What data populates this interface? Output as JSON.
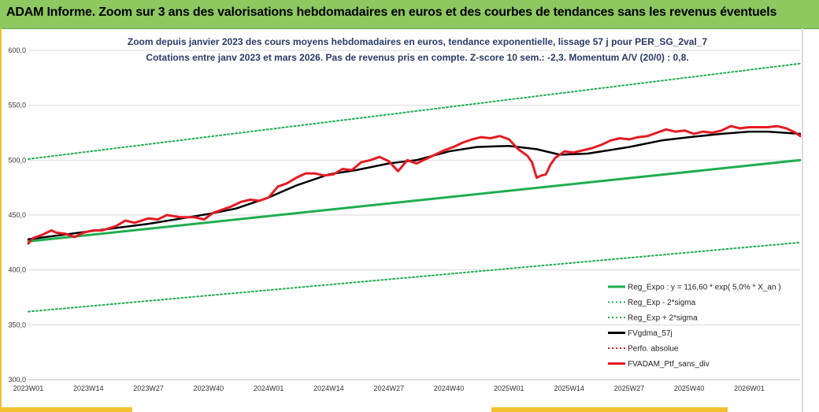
{
  "header": {
    "title": "ADAM Informe. Zoom sur 3 ans des valorisations hebdomadaires en euros et des courbes de tendances sans les revenus éventuels"
  },
  "chart_data": {
    "type": "line",
    "subtitle_line1": "Zoom depuis janvier 2023 des cours moyens hebdomadaires  en euros, tendance exponentielle, lissage 57 j pour PER_SG_2val_7",
    "subtitle_line2": "Cotations  entre janv 2023 et mars 2026. Pas de revenus pris en compte. Z-score 10 sem.: -2,3. Momentum A/V (20/0) : 0,8.",
    "ylim": [
      300,
      600
    ],
    "y_ticks": [
      "600,0",
      "550,0",
      "500,0",
      "450,0",
      "400,0",
      "350,0",
      "300,0"
    ],
    "x_ticks": [
      "2023W01",
      "2023W14",
      "2023W27",
      "2023W40",
      "2024W01",
      "2024W14",
      "2024W27",
      "2024W40",
      "2025W01",
      "2025W14",
      "2025W27",
      "2025W40",
      "2026W01"
    ],
    "xlim": [
      0,
      167
    ],
    "colors": {
      "reg": "#1fae4e",
      "band": "#1fae4e",
      "smooth": "#000000",
      "perf": "#e31b23",
      "ptf": "#e31b23"
    },
    "legend": [
      {
        "label": "Reg_Expo : y = 116,60 * exp( 5,0% *  X_an )",
        "style": "solid",
        "color": "#1fae4e"
      },
      {
        "label": "Reg_Exp - 2*sigma",
        "style": "dotted",
        "color": "#1fae4e"
      },
      {
        "label": "Reg_Exp + 2*sigma",
        "style": "dotted",
        "color": "#1fae4e"
      },
      {
        "label": "FVgdma_57j",
        "style": "solid",
        "color": "#000000"
      },
      {
        "label": "Perfo. absolue",
        "style": "dotted",
        "color": "#e31b23"
      },
      {
        "label": "FVADAM_Ptf_sans_div",
        "style": "solid",
        "color": "#e31b23"
      }
    ],
    "series": [
      {
        "name": "Reg_Expo : y = 116,60 * exp( 5,0% *  X_an )",
        "key": "reg",
        "x": [
          0,
          167
        ],
        "values": [
          426,
          500
        ]
      },
      {
        "name": "Reg_Exp - 2*sigma",
        "key": "lower",
        "x": [
          0,
          167
        ],
        "values": [
          362,
          425
        ]
      },
      {
        "name": "Reg_Exp + 2*sigma",
        "key": "upper",
        "x": [
          0,
          167
        ],
        "values": [
          501,
          588
        ]
      },
      {
        "name": "FVgdma_57j",
        "key": "smooth",
        "x": [
          0,
          13,
          26,
          39,
          45,
          52,
          58,
          65,
          71,
          78,
          84,
          91,
          97,
          104,
          110,
          115,
          121,
          130,
          137,
          143,
          150,
          156,
          160,
          167
        ],
        "values": [
          428,
          435,
          442,
          451,
          456,
          466,
          477,
          487,
          491,
          497,
          500,
          508,
          512,
          513,
          510,
          505,
          506,
          512,
          518,
          521,
          524,
          526,
          526,
          524
        ]
      },
      {
        "name": "FVADAM_Ptf_sans_div",
        "key": "ptf",
        "x": [
          0,
          1,
          3,
          5,
          6,
          8,
          10,
          12,
          14,
          16,
          19,
          21,
          23,
          26,
          28,
          30,
          33,
          36,
          38,
          40,
          42,
          44,
          46,
          48,
          50,
          52,
          54,
          56,
          58,
          60,
          62,
          64,
          66,
          68,
          70,
          72,
          74,
          76,
          78,
          80,
          82,
          84,
          86,
          88,
          90,
          92,
          94,
          96,
          98,
          100,
          102,
          104,
          106,
          108,
          109,
          110,
          111,
          112,
          113,
          114,
          116,
          118,
          120,
          122,
          124,
          126,
          128,
          130,
          132,
          134,
          136,
          138,
          140,
          142,
          144,
          146,
          148,
          150,
          152,
          154,
          156,
          158,
          160,
          162,
          164,
          166,
          167
        ],
        "values": [
          424,
          429,
          432,
          436,
          434,
          433,
          430,
          434,
          436,
          436,
          440,
          445,
          443,
          447,
          446,
          450,
          448,
          448,
          446,
          452,
          455,
          458,
          462,
          464,
          463,
          466,
          476,
          479,
          484,
          488,
          488,
          486,
          487,
          492,
          491,
          498,
          500,
          503,
          499,
          490,
          500,
          497,
          501,
          505,
          509,
          512,
          516,
          519,
          521,
          520,
          522,
          519,
          510,
          504,
          498,
          484,
          486,
          487,
          496,
          502,
          508,
          507,
          509,
          511,
          514,
          518,
          520,
          519,
          521,
          522,
          525,
          528,
          526,
          527,
          524,
          526,
          525,
          527,
          531,
          529,
          530,
          530,
          530,
          531,
          529,
          525,
          522
        ]
      }
    ]
  }
}
